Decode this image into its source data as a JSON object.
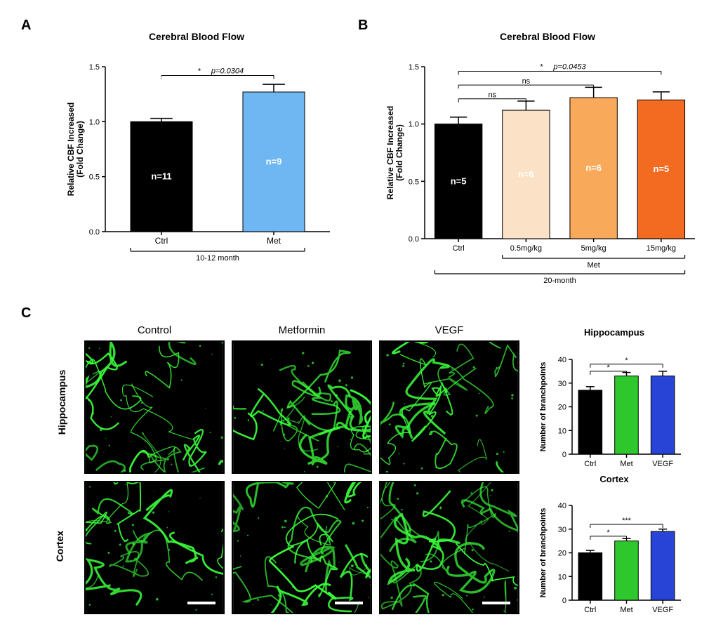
{
  "panelA": {
    "label": "A",
    "title": "Cerebral Blood Flow",
    "ylabel_line1": "Relative CBF Increased",
    "ylabel_line2": "(Fold Change)",
    "ylim": [
      0,
      1.5
    ],
    "yticks": [
      0.0,
      0.5,
      1.0,
      1.5
    ],
    "categories": [
      "Ctrl",
      "Met"
    ],
    "values": [
      1.0,
      1.27
    ],
    "errors": [
      0.03,
      0.07
    ],
    "n_labels": [
      "n=11",
      "n=9"
    ],
    "bar_colors": [
      "#000000",
      "#6fb7f2"
    ],
    "group_label": "10-12 month",
    "sig": {
      "text": "*",
      "pvalue": "p=0.0304"
    }
  },
  "panelB": {
    "label": "B",
    "title": "Cerebral Blood Flow",
    "ylabel_line1": "Relative  CBF Increased",
    "ylabel_line2": "(Fold Change)",
    "ylim": [
      0,
      1.5
    ],
    "yticks": [
      0.0,
      0.5,
      1.0,
      1.5
    ],
    "categories": [
      "Ctrl",
      "0.5mg/kg",
      "5mg/kg",
      "15mg/kg"
    ],
    "values": [
      1.0,
      1.12,
      1.23,
      1.21
    ],
    "errors": [
      0.06,
      0.08,
      0.09,
      0.07
    ],
    "n_labels": [
      "n=5",
      "n=6",
      "n=6",
      "n=5"
    ],
    "bar_colors": [
      "#000000",
      "#fbe1c5",
      "#f9a95a",
      "#f26b21"
    ],
    "group_label_sub": "Met",
    "group_label": "20-month",
    "sigs": [
      {
        "from": 0,
        "to": 1,
        "text": "ns",
        "y": 1.22
      },
      {
        "from": 0,
        "to": 2,
        "text": "ns",
        "y": 1.34
      },
      {
        "from": 0,
        "to": 3,
        "text": "*",
        "pvalue": "p=0.0453",
        "y": 1.46
      }
    ]
  },
  "panelC": {
    "label": "C",
    "columns": [
      "Control",
      "Metformin",
      "VEGF"
    ],
    "rows": [
      "Hippocampus",
      "Cortex"
    ],
    "chart_hippo": {
      "title": "Hippocampus",
      "ylabel": "Number of branchpoints",
      "ylim": [
        0,
        40
      ],
      "yticks": [
        0,
        10,
        20,
        30,
        40
      ],
      "categories": [
        "Ctrl",
        "Met",
        "VEGF"
      ],
      "values": [
        27,
        33,
        33
      ],
      "errors": [
        1.5,
        1.5,
        2
      ],
      "bar_colors": [
        "#000000",
        "#2ec72c",
        "#2744d6"
      ],
      "sigs": [
        {
          "from": 0,
          "to": 1,
          "text": "*",
          "y": 35
        },
        {
          "from": 0,
          "to": 2,
          "text": "*",
          "y": 38
        }
      ]
    },
    "chart_cortex": {
      "title": "Cortex",
      "ylabel": "Number of branchpoints",
      "ylim": [
        0,
        40
      ],
      "yticks": [
        0,
        10,
        20,
        30,
        40
      ],
      "categories": [
        "Ctrl",
        "Met",
        "VEGF"
      ],
      "values": [
        20,
        25,
        29
      ],
      "errors": [
        1,
        1,
        1
      ],
      "bar_colors": [
        "#000000",
        "#2ec72c",
        "#2744d6"
      ],
      "sigs": [
        {
          "from": 0,
          "to": 1,
          "text": "*",
          "y": 27
        },
        {
          "from": 0,
          "to": 2,
          "text": "***",
          "y": 32
        }
      ]
    }
  },
  "colors": {
    "bg": "#ffffff",
    "axis": "#000000",
    "micro_bg": "#000000",
    "micro_signal": "#3bff3b"
  }
}
